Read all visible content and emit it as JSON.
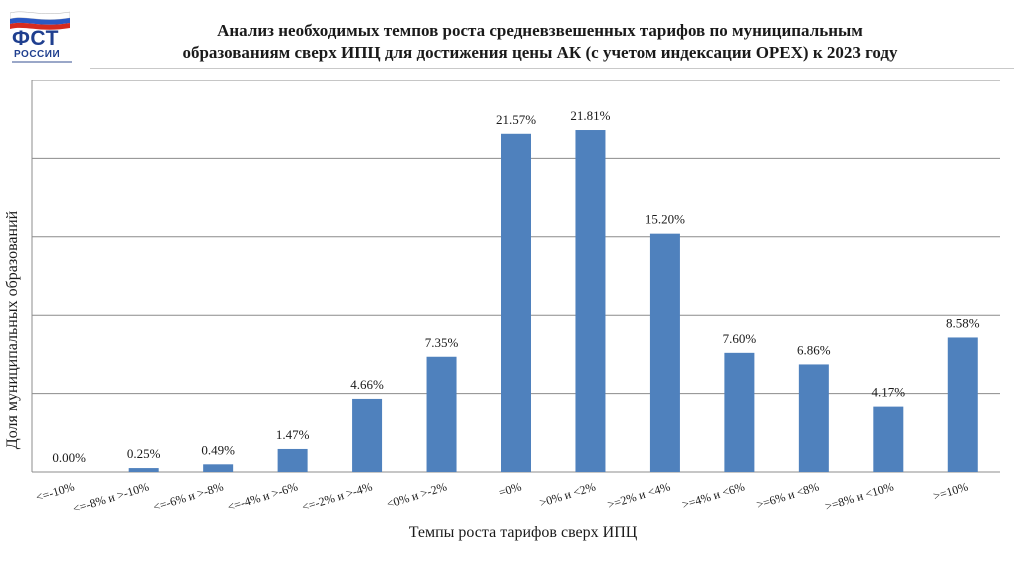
{
  "logo": {
    "abbr": "ФСТ",
    "country": "РОССИИ",
    "flag_colors": [
      "#ffffff",
      "#2b59c3",
      "#d52b1e"
    ]
  },
  "title_lines": [
    "Анализ необходимых темпов роста средневзвешенных тарифов по муниципальным",
    "образованиям сверх ИПЦ для достижения цены АК (с учетом индексации OPEX) к 2023 году"
  ],
  "chart_data": {
    "type": "bar",
    "title": "Анализ необходимых темпов роста средневзвешенных тарифов по муниципальным образованиям сверх ИПЦ для достижения цены АК (с учетом индексации OPEX) к 2023 году",
    "xlabel": "Темпы роста тарифов сверх ИПЦ",
    "ylabel": "Доля муниципальных образований",
    "categories": [
      "<=-10%",
      "<=-8% и >-10%",
      "<=-6% и >-8%",
      "<=-4% и >-6%",
      "<=-2% и >-4%",
      "<0% и >-2%",
      "=0%",
      ">0% и <2%",
      ">=2% и <4%",
      ">=4% и <6%",
      ">=6% и <8%",
      ">=8% и <10%",
      ">=10%"
    ],
    "values": [
      0.0,
      0.25,
      0.49,
      1.47,
      4.66,
      7.35,
      21.57,
      21.81,
      15.2,
      7.6,
      6.86,
      4.17,
      8.58
    ],
    "value_labels": [
      "0.00%",
      "0.25%",
      "0.49%",
      "1.47%",
      "4.66%",
      "7.35%",
      "21.57%",
      "21.81%",
      "15.20%",
      "7.60%",
      "6.86%",
      "4.17%",
      "8.58%"
    ],
    "ylim": [
      0,
      25
    ],
    "grid": true,
    "bar_color": "#4f81bd",
    "gridline_color": "#8c8c8c"
  }
}
